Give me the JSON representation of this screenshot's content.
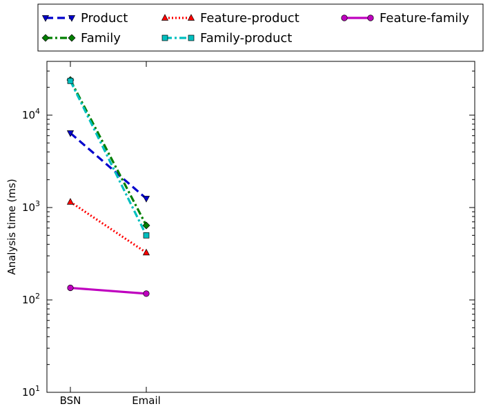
{
  "chart_data": {
    "type": "line",
    "title": "",
    "xlabel": "",
    "ylabel": "Analysis time (ms)",
    "yscale": "log",
    "ylim": [
      10,
      37000
    ],
    "categories": [
      "BSN",
      "Email"
    ],
    "y_tick_labels": [
      {
        "value": 10,
        "base": "10",
        "exp": "1"
      },
      {
        "value": 100,
        "base": "10",
        "exp": "2"
      },
      {
        "value": 1000,
        "base": "10",
        "exp": "3"
      },
      {
        "value": 10000,
        "base": "10",
        "exp": "4"
      }
    ],
    "grid": false,
    "legend_position": "top (outside, above plot)",
    "series": [
      {
        "name": "Product",
        "color": "#0000cc",
        "marker": "triangle-down",
        "style": "dashed",
        "values": [
          6400,
          1250
        ]
      },
      {
        "name": "Family",
        "color": "#007f00",
        "marker": "diamond",
        "style": "dashdot",
        "values": [
          24000,
          640
        ]
      },
      {
        "name": "Feature-product",
        "color": "#ff0000",
        "marker": "triangle-up",
        "style": "dotted",
        "values": [
          1150,
          325
        ]
      },
      {
        "name": "Family-product",
        "color": "#00bfbf",
        "marker": "square",
        "style": "dashdot",
        "values": [
          23500,
          500
        ]
      },
      {
        "name": "Feature-family",
        "color": "#bf00bf",
        "marker": "circle",
        "style": "solid",
        "values": [
          135,
          117
        ]
      }
    ]
  }
}
